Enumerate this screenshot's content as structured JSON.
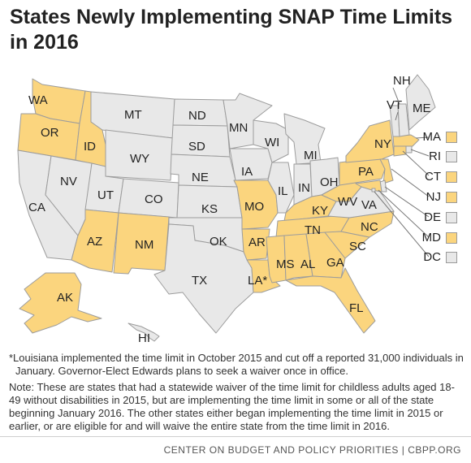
{
  "title": "States Newly Implementing SNAP Time Limits in 2016",
  "colors": {
    "implementing": "#fbd57e",
    "other": "#e8e8e8",
    "border": "#9c9c9c"
  },
  "map_data": {
    "states": [
      {
        "abbr": "WA",
        "status": "implementing"
      },
      {
        "abbr": "OR",
        "status": "implementing"
      },
      {
        "abbr": "ID",
        "status": "implementing"
      },
      {
        "abbr": "AZ",
        "status": "implementing"
      },
      {
        "abbr": "NM",
        "status": "implementing"
      },
      {
        "abbr": "MO",
        "status": "implementing"
      },
      {
        "abbr": "AR",
        "status": "implementing"
      },
      {
        "abbr": "LA*",
        "status": "implementing"
      },
      {
        "abbr": "MS",
        "status": "implementing"
      },
      {
        "abbr": "AL",
        "status": "implementing"
      },
      {
        "abbr": "GA",
        "status": "implementing"
      },
      {
        "abbr": "FL",
        "status": "implementing"
      },
      {
        "abbr": "SC",
        "status": "implementing"
      },
      {
        "abbr": "NC",
        "status": "implementing"
      },
      {
        "abbr": "TN",
        "status": "implementing"
      },
      {
        "abbr": "KY",
        "status": "implementing"
      },
      {
        "abbr": "WV",
        "status": "implementing"
      },
      {
        "abbr": "PA",
        "status": "implementing"
      },
      {
        "abbr": "NY",
        "status": "implementing"
      },
      {
        "abbr": "AK",
        "status": "implementing"
      },
      {
        "abbr": "MA",
        "status": "implementing"
      },
      {
        "abbr": "CT",
        "status": "implementing"
      },
      {
        "abbr": "NJ",
        "status": "implementing"
      },
      {
        "abbr": "MD",
        "status": "implementing"
      },
      {
        "abbr": "CA",
        "status": "other"
      },
      {
        "abbr": "NV",
        "status": "other"
      },
      {
        "abbr": "UT",
        "status": "other"
      },
      {
        "abbr": "MT",
        "status": "other"
      },
      {
        "abbr": "WY",
        "status": "other"
      },
      {
        "abbr": "CO",
        "status": "other"
      },
      {
        "abbr": "ND",
        "status": "other"
      },
      {
        "abbr": "SD",
        "status": "other"
      },
      {
        "abbr": "NE",
        "status": "other"
      },
      {
        "abbr": "KS",
        "status": "other"
      },
      {
        "abbr": "OK",
        "status": "other"
      },
      {
        "abbr": "TX",
        "status": "other"
      },
      {
        "abbr": "MN",
        "status": "other"
      },
      {
        "abbr": "IA",
        "status": "other"
      },
      {
        "abbr": "WI",
        "status": "other"
      },
      {
        "abbr": "IL",
        "status": "other"
      },
      {
        "abbr": "MI",
        "status": "other"
      },
      {
        "abbr": "IN",
        "status": "other"
      },
      {
        "abbr": "OH",
        "status": "other"
      },
      {
        "abbr": "VA",
        "status": "other"
      },
      {
        "abbr": "VT",
        "status": "other"
      },
      {
        "abbr": "NH",
        "status": "other"
      },
      {
        "abbr": "ME",
        "status": "other"
      },
      {
        "abbr": "HI",
        "status": "other"
      },
      {
        "abbr": "RI",
        "status": "other"
      },
      {
        "abbr": "DE",
        "status": "other"
      },
      {
        "abbr": "DC",
        "status": "other"
      }
    ]
  },
  "legend": {
    "small_states": [
      {
        "abbr": "MA",
        "status": "implementing"
      },
      {
        "abbr": "RI",
        "status": "other"
      },
      {
        "abbr": "CT",
        "status": "implementing"
      },
      {
        "abbr": "NJ",
        "status": "implementing"
      },
      {
        "abbr": "DE",
        "status": "other"
      },
      {
        "abbr": "MD",
        "status": "implementing"
      },
      {
        "abbr": "DC",
        "status": "other"
      }
    ]
  },
  "notes": {
    "footnote": "*Louisiana implemented the time limit in October 2015 and cut off a reported 31,000 individuals in January. Governor-Elect Edwards plans to seek a waiver once in office.",
    "note": "Note: These are states that had a statewide waiver of the time limit for childless adults aged 18-49 without disabilities in 2015, but are implementing the time limit in some or all of the state beginning January 2016. The other states either began implementing the time limit in 2015 or earlier, or are eligible for and will waive the entire state from the time limit in 2016."
  },
  "source": "CENTER ON BUDGET AND POLICY PRIORITIES | CBPP.ORG"
}
